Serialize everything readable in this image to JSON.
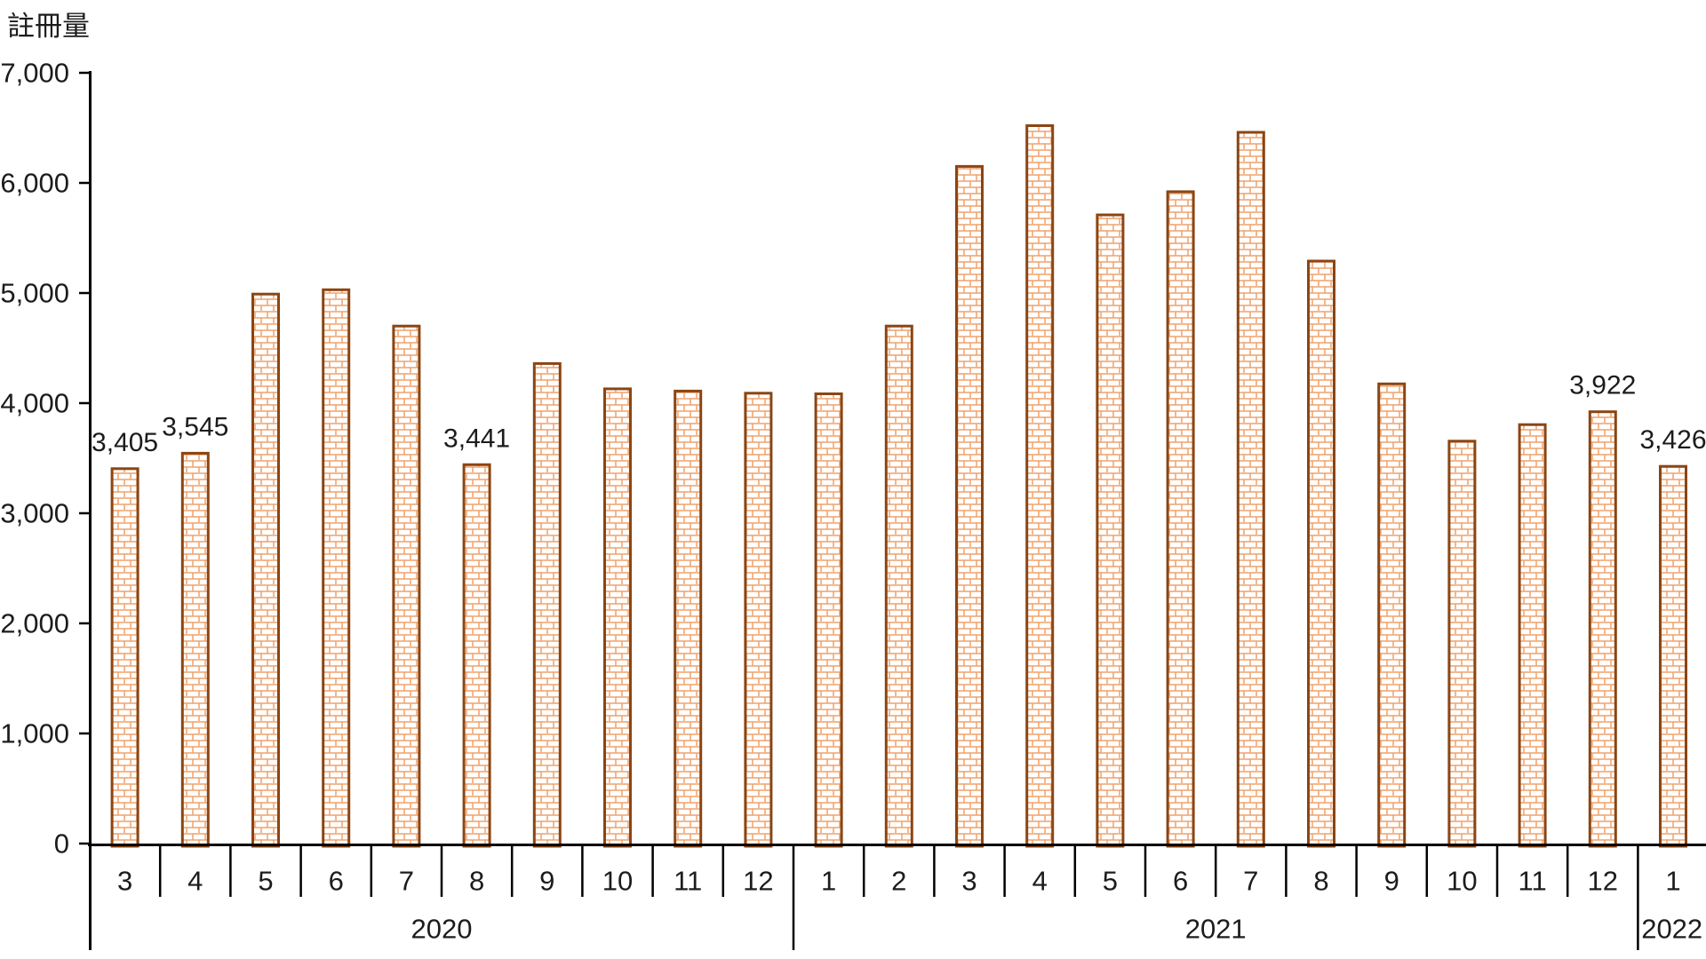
{
  "chart_data": {
    "type": "bar",
    "ylabel": "註冊量",
    "ylim": [
      0,
      7000
    ],
    "ytick_interval": 1000,
    "ytick_labels": [
      "0",
      "1,000",
      "2,000",
      "3,000",
      "4,000",
      "5,000",
      "6,000",
      "7,000"
    ],
    "grid": false,
    "legend": "none",
    "bar_style": {
      "fill_pattern": "brick",
      "pattern_color": "#EFA26B",
      "pattern_background": "#FFFFFF",
      "border_color": "#8B4513"
    },
    "axis_color": "#000000",
    "series": [
      {
        "name": "註冊量",
        "points": [
          {
            "year": "2020",
            "month": "3",
            "value": 3405,
            "data_label": "3,405"
          },
          {
            "year": "2020",
            "month": "4",
            "value": 3545,
            "data_label": "3,545"
          },
          {
            "year": "2020",
            "month": "5",
            "value": 4990,
            "data_label": null
          },
          {
            "year": "2020",
            "month": "6",
            "value": 5030,
            "data_label": null
          },
          {
            "year": "2020",
            "month": "7",
            "value": 4700,
            "data_label": null
          },
          {
            "year": "2020",
            "month": "8",
            "value": 3441,
            "data_label": "3,441"
          },
          {
            "year": "2020",
            "month": "9",
            "value": 4360,
            "data_label": null
          },
          {
            "year": "2020",
            "month": "10",
            "value": 4130,
            "data_label": null
          },
          {
            "year": "2020",
            "month": "11",
            "value": 4110,
            "data_label": null
          },
          {
            "year": "2020",
            "month": "12",
            "value": 4090,
            "data_label": null
          },
          {
            "year": "2021",
            "month": "1",
            "value": 4085,
            "data_label": null
          },
          {
            "year": "2021",
            "month": "2",
            "value": 4700,
            "data_label": null
          },
          {
            "year": "2021",
            "month": "3",
            "value": 6150,
            "data_label": null
          },
          {
            "year": "2021",
            "month": "4",
            "value": 6520,
            "data_label": null
          },
          {
            "year": "2021",
            "month": "5",
            "value": 5710,
            "data_label": null
          },
          {
            "year": "2021",
            "month": "6",
            "value": 5920,
            "data_label": null
          },
          {
            "year": "2021",
            "month": "7",
            "value": 6460,
            "data_label": null
          },
          {
            "year": "2021",
            "month": "8",
            "value": 5290,
            "data_label": null
          },
          {
            "year": "2021",
            "month": "9",
            "value": 4175,
            "data_label": null
          },
          {
            "year": "2021",
            "month": "10",
            "value": 3655,
            "data_label": null
          },
          {
            "year": "2021",
            "month": "11",
            "value": 3805,
            "data_label": null
          },
          {
            "year": "2021",
            "month": "12",
            "value": 3922,
            "data_label": "3,922"
          },
          {
            "year": "2022",
            "month": "1",
            "value": 3426,
            "data_label": "3,426"
          }
        ]
      }
    ]
  }
}
